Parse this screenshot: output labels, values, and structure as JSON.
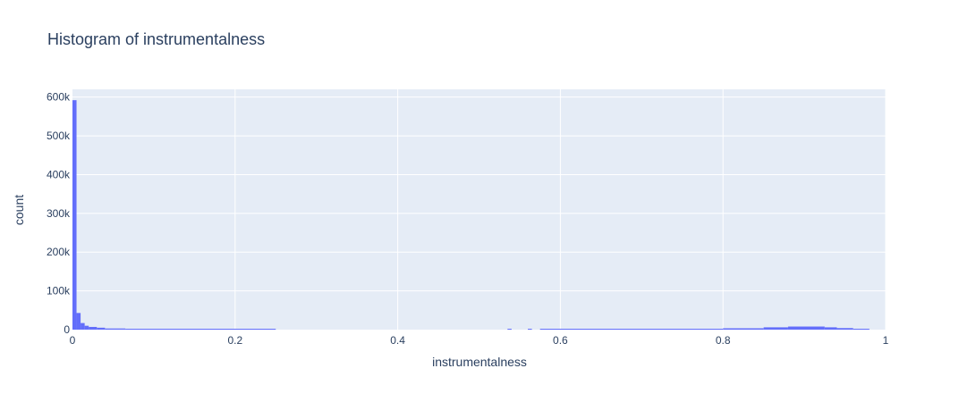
{
  "chart_data": {
    "type": "bar",
    "title": "Histogram of instrumentalness",
    "xlabel": "instrumentalness",
    "ylabel": "count",
    "xlim": [
      0,
      1
    ],
    "ylim": [
      0,
      600000
    ],
    "x_ticks": [
      {
        "value": 0,
        "label": "0"
      },
      {
        "value": 0.2,
        "label": "0.2"
      },
      {
        "value": 0.4,
        "label": "0.4"
      },
      {
        "value": 0.6,
        "label": "0.6"
      },
      {
        "value": 0.8,
        "label": "0.8"
      },
      {
        "value": 1,
        "label": "1"
      }
    ],
    "y_ticks": [
      {
        "value": 0,
        "label": "0"
      },
      {
        "value": 100000,
        "label": "100k"
      },
      {
        "value": 200000,
        "label": "200k"
      },
      {
        "value": 300000,
        "label": "300k"
      },
      {
        "value": 400000,
        "label": "400k"
      },
      {
        "value": 500000,
        "label": "500k"
      },
      {
        "value": 600000,
        "label": "600k"
      }
    ],
    "grid": true,
    "colors": {
      "bar": "#636efa",
      "plot_bg": "#e5ecf6",
      "grid": "#ffffff",
      "text": "#2a3f5f"
    },
    "bins": [
      {
        "x0": 0.0,
        "x1": 0.005,
        "count": 592000
      },
      {
        "x0": 0.005,
        "x1": 0.01,
        "count": 43000
      },
      {
        "x0": 0.01,
        "x1": 0.015,
        "count": 17000
      },
      {
        "x0": 0.015,
        "x1": 0.02,
        "count": 10000
      },
      {
        "x0": 0.02,
        "x1": 0.03,
        "count": 7000
      },
      {
        "x0": 0.03,
        "x1": 0.04,
        "count": 5000
      },
      {
        "x0": 0.04,
        "x1": 0.065,
        "count": 3000
      },
      {
        "x0": 0.065,
        "x1": 0.25,
        "count": 1500
      },
      {
        "x0": 0.535,
        "x1": 0.54,
        "count": 1500
      },
      {
        "x0": 0.56,
        "x1": 0.565,
        "count": 1500
      },
      {
        "x0": 0.575,
        "x1": 0.8,
        "count": 1500
      },
      {
        "x0": 0.8,
        "x1": 0.85,
        "count": 3500
      },
      {
        "x0": 0.85,
        "x1": 0.88,
        "count": 6000
      },
      {
        "x0": 0.88,
        "x1": 0.925,
        "count": 8000
      },
      {
        "x0": 0.925,
        "x1": 0.94,
        "count": 6000
      },
      {
        "x0": 0.94,
        "x1": 0.96,
        "count": 4000
      },
      {
        "x0": 0.96,
        "x1": 0.98,
        "count": 2000
      }
    ]
  }
}
